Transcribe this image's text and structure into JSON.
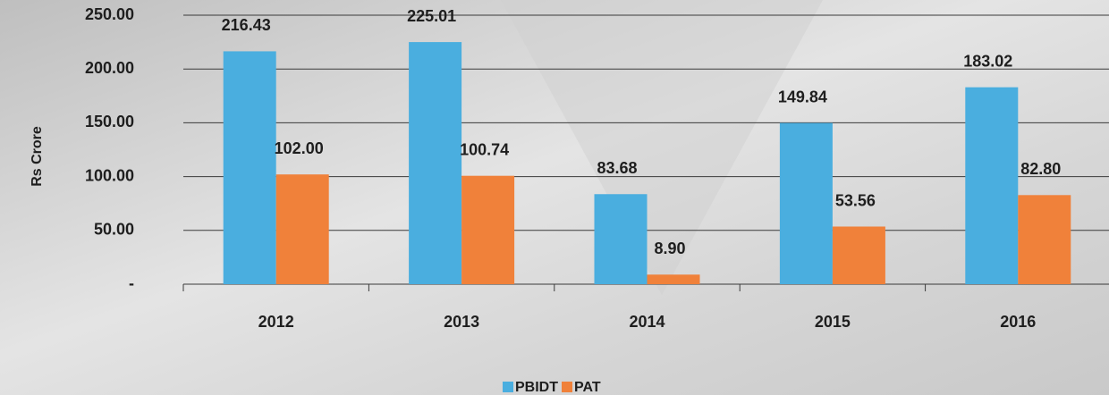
{
  "chart_data": {
    "type": "bar",
    "ylabel": "Rs Crore",
    "categories": [
      "2012",
      "2013",
      "2014",
      "2015",
      "2016"
    ],
    "series": [
      {
        "name": "PBIDT",
        "color": "#4aaedf",
        "values": [
          216.43,
          225.01,
          83.68,
          149.84,
          183.02
        ],
        "value_labels": [
          "216.43",
          "225.01",
          "83.68",
          "149.84",
          "183.02"
        ]
      },
      {
        "name": "PAT",
        "color": "#f0813a",
        "values": [
          102.0,
          100.74,
          8.9,
          53.56,
          82.8
        ],
        "value_labels": [
          "102.00",
          "100.74",
          "8.90",
          "53.56",
          "82.80"
        ]
      }
    ],
    "ylim": [
      0,
      250
    ],
    "yticks": [
      {
        "value": 0,
        "label": "-"
      },
      {
        "value": 50,
        "label": "50.00"
      },
      {
        "value": 100,
        "label": "100.00"
      },
      {
        "value": 150,
        "label": "150.00"
      },
      {
        "value": 200,
        "label": "200.00"
      },
      {
        "value": 250,
        "label": "250.00"
      }
    ],
    "grid": true,
    "legend": "bottom"
  }
}
